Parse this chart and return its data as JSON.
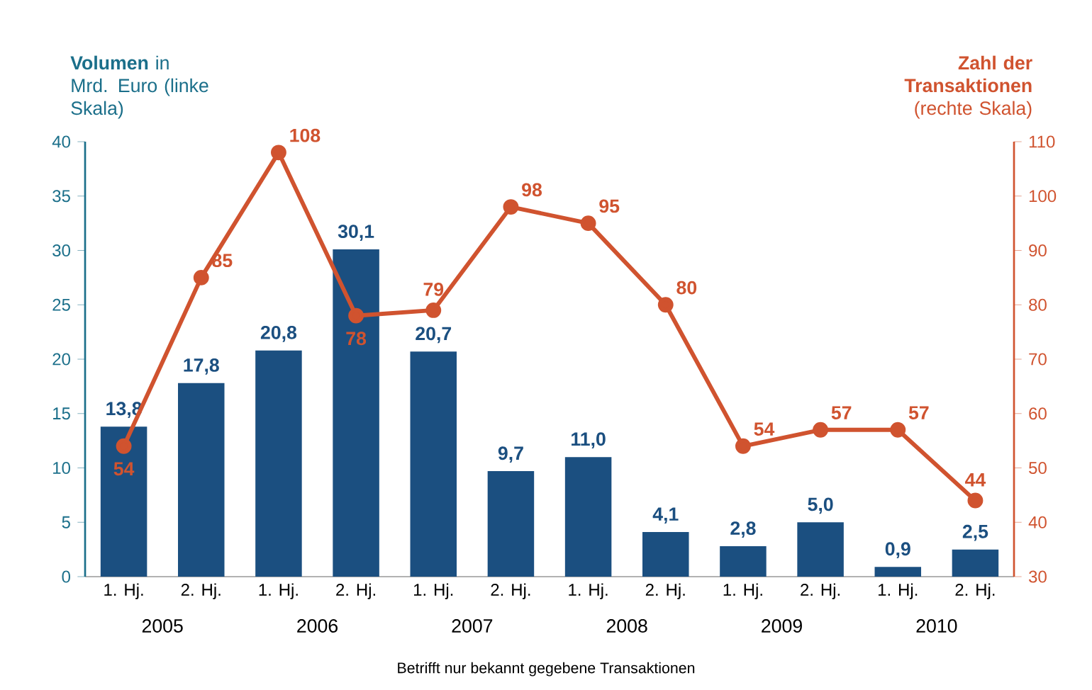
{
  "chart_data": {
    "type": "bar",
    "ylabel": "**Volumen** in Mrd. Euro (linke Skala)",
    "y2label": "**Zahl der Transaktionen** (rechte Skala)",
    "categories": [
      "1. Hj.",
      "2. Hj.",
      "1. Hj.",
      "2. Hj.",
      "1. Hj.",
      "2. Hj.",
      "1. Hj.",
      "2. Hj.",
      "1. Hj.",
      "2. Hj.",
      "1. Hj.",
      "2. Hj."
    ],
    "series": [
      {
        "color": "#1b4f80",
        "values": [
          13.8,
          17.8,
          20.8,
          30.1,
          20.7,
          9.7,
          11.0,
          4.1,
          2.8,
          5.0,
          0.9,
          2.5
        ],
        "value_labels": [
          "13,8",
          "17,8",
          "20,8",
          "30,1",
          "20,7",
          "9,7",
          "11,0",
          "4,1",
          "2,8",
          "5,0",
          "0,9",
          "2,5"
        ]
      },
      {
        "type": "line",
        "axis": "y2",
        "color": "#d0532f",
        "marker": "circle",
        "values": [
          54,
          85,
          108,
          78,
          79,
          98,
          95,
          80,
          54,
          57,
          57,
          44
        ],
        "value_labels": [
          "54",
          "85",
          "108",
          "78",
          "79",
          "98",
          "95",
          "80",
          "54",
          "57",
          "57",
          "44"
        ]
      }
    ],
    "ylim": [
      0,
      40
    ],
    "yticks": [
      0,
      5,
      10,
      15,
      20,
      25,
      30,
      35,
      40
    ],
    "y2lim": [
      30,
      110
    ],
    "y2ticks": [
      30,
      40,
      50,
      60,
      70,
      80,
      90,
      100,
      110
    ],
    "annotations": [
      "Betrifft nur bekannt gegebene Transaktionen",
      "2005",
      "2006",
      "2007",
      "2008",
      "2009",
      "2010"
    ]
  }
}
